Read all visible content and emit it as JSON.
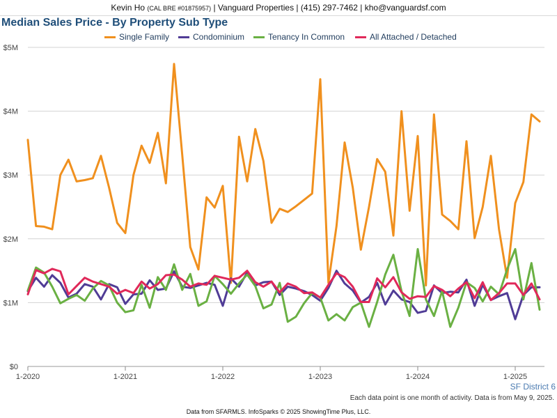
{
  "header": {
    "name": "Kevin Ho",
    "license": "(CAL BRE #01875957)",
    "rest": "| Vanguard Properties | (415) 297-7462 | kho@vanguardsf.com"
  },
  "title": "Median Sales Price - By Property Sub Type",
  "region_label": "SF District 6",
  "note": "Each data point is one month of activity. Data is from May 9, 2025.",
  "footer": "Data from SFARMLS. InfoSparks © 2025 ShowingTime Plus, LLC.",
  "chart_data": {
    "type": "line",
    "x_start": "2020-01",
    "x_end": "2025-04",
    "x_ticks": [
      "1-2020",
      "1-2021",
      "1-2022",
      "1-2023",
      "1-2024",
      "1-2025"
    ],
    "y_ticks": [
      "$0",
      "$1M",
      "$2M",
      "$3M",
      "$4M",
      "$5M"
    ],
    "ylim": [
      0,
      5000000
    ],
    "grid": true,
    "legend": "top",
    "series": [
      {
        "name": "Single Family",
        "color": "#f0901e",
        "values": [
          3550000,
          2200000,
          2190000,
          2150000,
          3000000,
          3240000,
          2900000,
          2920000,
          2950000,
          3300000,
          2800000,
          2250000,
          2090000,
          3000000,
          3460000,
          3190000,
          3660000,
          2870000,
          4740000,
          3320000,
          1870000,
          1520000,
          2650000,
          2490000,
          2830000,
          1310000,
          3600000,
          2900000,
          3720000,
          3220000,
          2250000,
          2470000,
          2420000,
          2510000,
          2610000,
          2710000,
          4500000,
          1310000,
          2200000,
          3510000,
          2800000,
          1830000,
          2500000,
          3250000,
          3050000,
          2050000,
          4000000,
          2440000,
          3610000,
          1270000,
          3950000,
          2380000,
          2280000,
          2150000,
          3530000,
          2010000,
          2500000,
          3300000,
          2150000,
          1390000,
          2560000,
          2890000,
          3950000,
          3840000
        ]
      },
      {
        "name": "Condominium",
        "color": "#503c96",
        "values": [
          1180000,
          1390000,
          1250000,
          1430000,
          1310000,
          1080000,
          1140000,
          1290000,
          1250000,
          1050000,
          1290000,
          1240000,
          980000,
          1130000,
          1140000,
          1350000,
          1200000,
          1220000,
          1490000,
          1250000,
          1230000,
          1270000,
          1310000,
          1280000,
          950000,
          1380000,
          1250000,
          1470000,
          1270000,
          1320000,
          1330000,
          1120000,
          1250000,
          1220000,
          1180000,
          1120000,
          1030000,
          1230000,
          1500000,
          1300000,
          1190000,
          1000000,
          1090000,
          1310000,
          970000,
          1190000,
          1050000,
          1010000,
          840000,
          870000,
          1270000,
          1150000,
          1170000,
          1160000,
          1360000,
          950000,
          1280000,
          1040000,
          1100000,
          1150000,
          740000,
          1120000,
          1240000,
          1240000
        ]
      },
      {
        "name": "Tenancy In Common",
        "color": "#6ab043",
        "values": [
          1190000,
          1550000,
          1470000,
          1250000,
          990000,
          1060000,
          1120000,
          1030000,
          1220000,
          1340000,
          1270000,
          1000000,
          850000,
          880000,
          1280000,
          920000,
          1400000,
          1200000,
          1600000,
          1200000,
          1450000,
          950000,
          1020000,
          1420000,
          1290000,
          1140000,
          1300000,
          1440000,
          1260000,
          910000,
          970000,
          1310000,
          700000,
          780000,
          990000,
          1150000,
          1080000,
          720000,
          820000,
          720000,
          930000,
          1000000,
          620000,
          1010000,
          1440000,
          1750000,
          1180000,
          790000,
          1840000,
          1050000,
          790000,
          1180000,
          620000,
          920000,
          1320000,
          1230000,
          1020000,
          1250000,
          1130000,
          1520000,
          1840000,
          1050000,
          1620000,
          890000
        ]
      },
      {
        "name": "All Attached / Detached",
        "color": "#e0295a",
        "values": [
          1130000,
          1510000,
          1460000,
          1530000,
          1490000,
          1130000,
          1260000,
          1390000,
          1330000,
          1290000,
          1250000,
          1140000,
          1200000,
          1150000,
          1330000,
          1220000,
          1290000,
          1430000,
          1440000,
          1360000,
          1250000,
          1300000,
          1280000,
          1420000,
          1390000,
          1360000,
          1390000,
          1500000,
          1320000,
          1250000,
          1330000,
          1160000,
          1300000,
          1250000,
          1150000,
          1160000,
          1080000,
          1280000,
          1460000,
          1400000,
          1250000,
          1010000,
          1010000,
          1380000,
          1240000,
          1400000,
          1160000,
          1060000,
          1100000,
          1090000,
          1260000,
          1200000,
          1100000,
          1220000,
          1320000,
          1070000,
          1320000,
          1040000,
          1150000,
          1300000,
          1300000,
          1120000,
          1300000,
          1050000
        ]
      }
    ]
  }
}
